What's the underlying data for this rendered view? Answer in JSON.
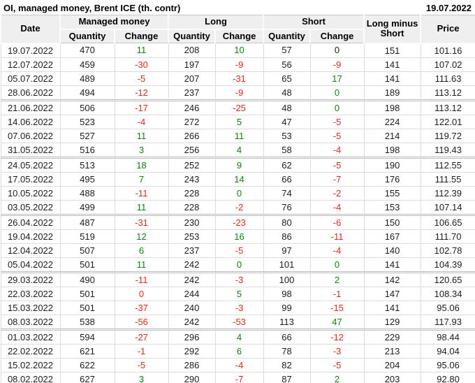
{
  "header": {
    "title": "OI, managed money, Brent ICE (th. contr)",
    "report_date": "19.07.2022"
  },
  "colors": {
    "green": "#0b840b",
    "red": "#de2b1d",
    "black": "#1c1c1c",
    "header_bg": "#efefef"
  },
  "table": {
    "col_headers": {
      "date": "Date",
      "managed_money": "Managed money",
      "long": "Long",
      "short": "Short",
      "quantity": "Quantity",
      "change": "Change",
      "long_minus_short": "Long minus Short",
      "price": "Price"
    },
    "group_start_rows": [
      4,
      8,
      12,
      16,
      20
    ],
    "rows": [
      {
        "date": "19.07.2022",
        "mm_q": "470",
        "mm_c": "11",
        "mm_cc": "green",
        "l_q": "208",
        "l_c": "10",
        "l_cc": "green",
        "s_q": "57",
        "s_c": "0",
        "s_cc": "black",
        "lms": "151",
        "price": "101.16"
      },
      {
        "date": "12.07.2022",
        "mm_q": "459",
        "mm_c": "-30",
        "mm_cc": "red",
        "l_q": "197",
        "l_c": "-9",
        "l_cc": "red",
        "s_q": "56",
        "s_c": "-9",
        "s_cc": "red",
        "lms": "141",
        "price": "107.02"
      },
      {
        "date": "05.07.2022",
        "mm_q": "489",
        "mm_c": "-5",
        "mm_cc": "red",
        "l_q": "207",
        "l_c": "-31",
        "l_cc": "red",
        "s_q": "65",
        "s_c": "17",
        "s_cc": "green",
        "lms": "141",
        "price": "111.63"
      },
      {
        "date": "28.06.2022",
        "mm_q": "494",
        "mm_c": "-12",
        "mm_cc": "red",
        "l_q": "237",
        "l_c": "-9",
        "l_cc": "red",
        "s_q": "48",
        "s_c": "0",
        "s_cc": "green",
        "lms": "189",
        "price": "113.12"
      },
      {
        "date": "21.06.2022",
        "mm_q": "506",
        "mm_c": "-17",
        "mm_cc": "red",
        "l_q": "246",
        "l_c": "-25",
        "l_cc": "red",
        "s_q": "48",
        "s_c": "0",
        "s_cc": "green",
        "lms": "198",
        "price": "113.12"
      },
      {
        "date": "14.06.2022",
        "mm_q": "523",
        "mm_c": "-4",
        "mm_cc": "red",
        "l_q": "272",
        "l_c": "5",
        "l_cc": "green",
        "s_q": "47",
        "s_c": "-5",
        "s_cc": "red",
        "lms": "224",
        "price": "122.01"
      },
      {
        "date": "07.06.2022",
        "mm_q": "527",
        "mm_c": "11",
        "mm_cc": "green",
        "l_q": "266",
        "l_c": "11",
        "l_cc": "green",
        "s_q": "53",
        "s_c": "-5",
        "s_cc": "red",
        "lms": "214",
        "price": "119.72"
      },
      {
        "date": "31.05.2022",
        "mm_q": "516",
        "mm_c": "3",
        "mm_cc": "green",
        "l_q": "256",
        "l_c": "4",
        "l_cc": "green",
        "s_q": "58",
        "s_c": "-4",
        "s_cc": "red",
        "lms": "198",
        "price": "119.43"
      },
      {
        "date": "24.05.2022",
        "mm_q": "513",
        "mm_c": "18",
        "mm_cc": "green",
        "l_q": "252",
        "l_c": "9",
        "l_cc": "green",
        "s_q": "62",
        "s_c": "-5",
        "s_cc": "red",
        "lms": "190",
        "price": "112.55"
      },
      {
        "date": "17.05.2022",
        "mm_q": "495",
        "mm_c": "7",
        "mm_cc": "green",
        "l_q": "243",
        "l_c": "14",
        "l_cc": "green",
        "s_q": "66",
        "s_c": "-7",
        "s_cc": "red",
        "lms": "176",
        "price": "111.55"
      },
      {
        "date": "10.05.2022",
        "mm_q": "488",
        "mm_c": "-11",
        "mm_cc": "red",
        "l_q": "228",
        "l_c": "0",
        "l_cc": "green",
        "s_q": "74",
        "s_c": "-2",
        "s_cc": "red",
        "lms": "155",
        "price": "112.39"
      },
      {
        "date": "03.05.2022",
        "mm_q": "499",
        "mm_c": "11",
        "mm_cc": "green",
        "l_q": "228",
        "l_c": "-2",
        "l_cc": "red",
        "s_q": "76",
        "s_c": "-4",
        "s_cc": "red",
        "lms": "153",
        "price": "107.14"
      },
      {
        "date": "26.04.2022",
        "mm_q": "487",
        "mm_c": "-31",
        "mm_cc": "red",
        "l_q": "230",
        "l_c": "-23",
        "l_cc": "red",
        "s_q": "80",
        "s_c": "-6",
        "s_cc": "red",
        "lms": "150",
        "price": "106.65"
      },
      {
        "date": "19.04.2022",
        "mm_q": "519",
        "mm_c": "12",
        "mm_cc": "green",
        "l_q": "253",
        "l_c": "16",
        "l_cc": "green",
        "s_q": "86",
        "s_c": "-11",
        "s_cc": "red",
        "lms": "167",
        "price": "111.70"
      },
      {
        "date": "12.04.2022",
        "mm_q": "507",
        "mm_c": "6",
        "mm_cc": "green",
        "l_q": "237",
        "l_c": "-5",
        "l_cc": "red",
        "s_q": "97",
        "s_c": "-4",
        "s_cc": "red",
        "lms": "140",
        "price": "102.78"
      },
      {
        "date": "05.04.2022",
        "mm_q": "501",
        "mm_c": "11",
        "mm_cc": "green",
        "l_q": "242",
        "l_c": "0",
        "l_cc": "green",
        "s_q": "101",
        "s_c": "0",
        "s_cc": "green",
        "lms": "141",
        "price": "104.39"
      },
      {
        "date": "29.03.2022",
        "mm_q": "490",
        "mm_c": "-11",
        "mm_cc": "red",
        "l_q": "242",
        "l_c": "-3",
        "l_cc": "red",
        "s_q": "100",
        "s_c": "2",
        "s_cc": "green",
        "lms": "142",
        "price": "120.65"
      },
      {
        "date": "22.03.2022",
        "mm_q": "501",
        "mm_c": "0",
        "mm_cc": "red",
        "l_q": "244",
        "l_c": "5",
        "l_cc": "green",
        "s_q": "98",
        "s_c": "-1",
        "s_cc": "red",
        "lms": "147",
        "price": "108.34"
      },
      {
        "date": "15.03.2022",
        "mm_q": "501",
        "mm_c": "-37",
        "mm_cc": "red",
        "l_q": "240",
        "l_c": "-3",
        "l_cc": "red",
        "s_q": "99",
        "s_c": "-15",
        "s_cc": "red",
        "lms": "141",
        "price": "95.06"
      },
      {
        "date": "08.03.2022",
        "mm_q": "538",
        "mm_c": "-56",
        "mm_cc": "red",
        "l_q": "242",
        "l_c": "-53",
        "l_cc": "red",
        "s_q": "113",
        "s_c": "47",
        "s_cc": "green",
        "lms": "129",
        "price": "117.93"
      },
      {
        "date": "01.03.2022",
        "mm_q": "594",
        "mm_c": "-27",
        "mm_cc": "red",
        "l_q": "296",
        "l_c": "4",
        "l_cc": "green",
        "s_q": "66",
        "s_c": "-12",
        "s_cc": "red",
        "lms": "229",
        "price": "98.44"
      },
      {
        "date": "22.02.2022",
        "mm_q": "621",
        "mm_c": "-1",
        "mm_cc": "red",
        "l_q": "292",
        "l_c": "6",
        "l_cc": "green",
        "s_q": "78",
        "s_c": "-3",
        "s_cc": "red",
        "lms": "213",
        "price": "94.04"
      },
      {
        "date": "15.02.2022",
        "mm_q": "622",
        "mm_c": "-5",
        "mm_cc": "red",
        "l_q": "286",
        "l_c": "-4",
        "l_cc": "red",
        "s_q": "82",
        "s_c": "-5",
        "s_cc": "red",
        "lms": "204",
        "price": "95.06"
      },
      {
        "date": "08.02.2022",
        "mm_q": "627",
        "mm_c": "3",
        "mm_cc": "green",
        "l_q": "290",
        "l_c": "-7",
        "l_cc": "red",
        "s_q": "87",
        "s_c": "2",
        "s_cc": "green",
        "lms": "203",
        "price": "92.80"
      }
    ]
  }
}
